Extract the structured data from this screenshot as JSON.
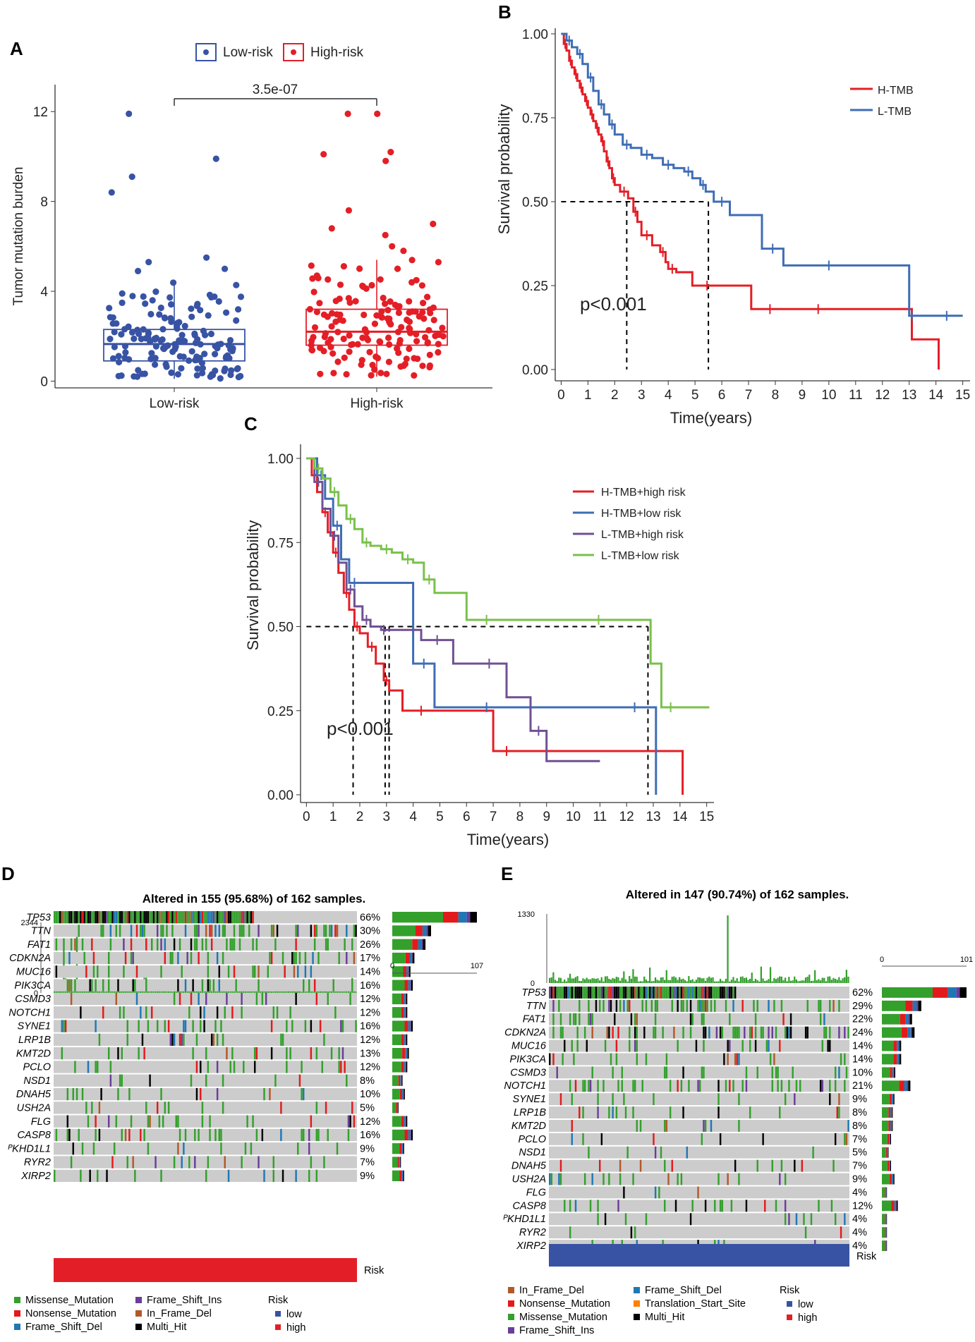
{
  "panels": {
    "A": "A",
    "B": "B",
    "C": "C",
    "D": "D",
    "E": "E"
  },
  "colors": {
    "low": "#3853a4",
    "high": "#e41e26",
    "green": "#6cbd45",
    "missense": "#33a02c",
    "nonsense": "#e31a1c",
    "fsdel": "#1f78b4",
    "fsins": "#6a3d9a",
    "infdel": "#b15928",
    "multi": "#000000",
    "tss": "#ff7f00",
    "grey": "#cccccc"
  },
  "chart_data": [
    {
      "id": "A",
      "type": "scatter",
      "title": "",
      "xlabel": "",
      "ylabel": "Tumor mutation burden",
      "categories": [
        "Low-risk",
        "High-risk"
      ],
      "legend": [
        "Low-risk",
        "High-risk"
      ],
      "ylim": [
        -0.3,
        13.2
      ],
      "yticks": [
        "0",
        "4",
        "8",
        "12"
      ],
      "p_value": "3.5e-07",
      "boxes": [
        {
          "group": "Low-risk",
          "q1": 0.9,
          "median": 1.65,
          "q3": 2.3,
          "whisker_low": 0.1,
          "whisker_high": 4.4
        },
        {
          "group": "High-risk",
          "q1": 1.6,
          "median": 2.2,
          "q3": 3.2,
          "whisker_low": 0.2,
          "whisker_high": 5.4
        }
      ],
      "outliers": {
        "Low-risk": [
          11.9,
          9.9,
          9.1,
          8.4,
          5.5,
          5.3,
          5.0,
          4.9
        ],
        "High-risk": [
          11.9,
          11.9,
          10.2,
          10.1,
          9.8,
          7.6,
          7.0,
          6.8,
          6.5,
          6.0,
          5.8
        ]
      }
    },
    {
      "id": "B",
      "type": "line",
      "xlabel": "Time(years)",
      "ylabel": "Survival probability",
      "xlim": [
        -0.3,
        15.3
      ],
      "ylim": [
        0,
        1
      ],
      "xticks": [
        "0",
        "1",
        "2",
        "3",
        "4",
        "5",
        "6",
        "7",
        "8",
        "9",
        "10",
        "11",
        "12",
        "13",
        "14",
        "15"
      ],
      "yticks": [
        "0.00",
        "0.25",
        "0.50",
        "0.75",
        "1.00"
      ],
      "p_text": "p<0.001",
      "median_survival": [
        2.45,
        5.5
      ],
      "series": [
        {
          "name": "H-TMB",
          "color": "#e41e26",
          "x": [
            0,
            0.1,
            0.2,
            0.3,
            0.4,
            0.5,
            0.6,
            0.7,
            0.8,
            0.9,
            1.0,
            1.1,
            1.2,
            1.3,
            1.4,
            1.5,
            1.6,
            1.7,
            1.8,
            1.9,
            2.0,
            2.2,
            2.5,
            2.7,
            2.85,
            3.0,
            3.4,
            3.7,
            3.9,
            4.0,
            4.3,
            4.9,
            6.0,
            7.1,
            8.5,
            9.2,
            10.0,
            12.9,
            13.1,
            13.5,
            14.1
          ],
          "y": [
            1,
            0.97,
            0.95,
            0.92,
            0.9,
            0.88,
            0.86,
            0.84,
            0.82,
            0.8,
            0.78,
            0.76,
            0.74,
            0.72,
            0.7,
            0.68,
            0.65,
            0.62,
            0.6,
            0.57,
            0.55,
            0.53,
            0.51,
            0.47,
            0.44,
            0.4,
            0.37,
            0.35,
            0.32,
            0.3,
            0.29,
            0.25,
            0.25,
            0.18,
            0.18,
            0.18,
            0.18,
            0.18,
            0.09,
            0.09,
            0
          ]
        },
        {
          "name": "L-TMB",
          "color": "#3e6db5",
          "x": [
            0,
            0.2,
            0.4,
            0.6,
            0.8,
            1.0,
            1.2,
            1.4,
            1.6,
            1.8,
            2.0,
            2.3,
            2.6,
            3.0,
            3.4,
            3.8,
            4.2,
            4.6,
            4.9,
            5.2,
            5.4,
            5.7,
            6.3,
            7.5,
            8.3,
            9.0,
            11.0,
            13.0,
            13.2,
            13.8,
            15.0
          ],
          "y": [
            1,
            0.98,
            0.96,
            0.94,
            0.91,
            0.87,
            0.83,
            0.79,
            0.76,
            0.73,
            0.7,
            0.67,
            0.66,
            0.64,
            0.63,
            0.61,
            0.6,
            0.59,
            0.57,
            0.55,
            0.53,
            0.5,
            0.46,
            0.36,
            0.31,
            0.31,
            0.31,
            0.16,
            0.16,
            0.16,
            0.16
          ]
        }
      ]
    },
    {
      "id": "C",
      "type": "line",
      "xlabel": "Time(years)",
      "ylabel": "Survival probability",
      "xlim": [
        -0.3,
        15.3
      ],
      "ylim": [
        0,
        1
      ],
      "xticks": [
        "0",
        "1",
        "2",
        "3",
        "4",
        "5",
        "6",
        "7",
        "8",
        "9",
        "10",
        "11",
        "12",
        "13",
        "14",
        "15"
      ],
      "yticks": [
        "0.00",
        "0.25",
        "0.50",
        "0.75",
        "1.00"
      ],
      "p_text": "p<0.001",
      "median_survival": [
        1.75,
        2.95,
        3.1,
        12.8
      ],
      "series": [
        {
          "name": "H-TMB+high risk",
          "color": "#e41e26",
          "x": [
            0,
            0.2,
            0.4,
            0.6,
            0.8,
            1.0,
            1.2,
            1.4,
            1.6,
            1.8,
            2.0,
            2.3,
            2.6,
            2.9,
            3.1,
            3.6,
            5.0,
            7.0,
            8.0,
            13.0,
            14.1
          ],
          "y": [
            1,
            0.95,
            0.9,
            0.84,
            0.78,
            0.72,
            0.66,
            0.6,
            0.55,
            0.5,
            0.48,
            0.44,
            0.39,
            0.34,
            0.31,
            0.25,
            0.25,
            0.13,
            0.13,
            0.13,
            0
          ]
        },
        {
          "name": "H-TMB+low risk",
          "color": "#3e6db5",
          "x": [
            0,
            0.4,
            0.7,
            1.0,
            1.3,
            1.6,
            2.0,
            4.0,
            4.8,
            5.5,
            8.0,
            11.6,
            13.0,
            13.1
          ],
          "y": [
            1,
            0.95,
            0.88,
            0.8,
            0.7,
            0.63,
            0.63,
            0.39,
            0.26,
            0.26,
            0.26,
            0.26,
            0.26,
            0
          ]
        },
        {
          "name": "L-TMB+high risk",
          "color": "#6f5094",
          "x": [
            0,
            0.3,
            0.6,
            0.9,
            1.2,
            1.5,
            1.8,
            2.1,
            2.4,
            2.8,
            3.0,
            4.3,
            5.5,
            6.2,
            7.5,
            8.4,
            9.0,
            11.0
          ],
          "y": [
            1,
            0.93,
            0.85,
            0.77,
            0.69,
            0.61,
            0.56,
            0.52,
            0.5,
            0.49,
            0.49,
            0.46,
            0.39,
            0.39,
            0.29,
            0.19,
            0.1,
            0.1
          ]
        },
        {
          "name": "L-TMB+low risk",
          "color": "#79c14a",
          "x": [
            0,
            0.3,
            0.6,
            0.9,
            1.2,
            1.5,
            1.8,
            2.1,
            2.4,
            2.8,
            3.2,
            3.6,
            4.0,
            4.4,
            4.8,
            6.0,
            7.5,
            9.0,
            12.9,
            13.3,
            14.0,
            15.1
          ],
          "y": [
            1,
            0.97,
            0.94,
            0.9,
            0.86,
            0.82,
            0.79,
            0.75,
            0.74,
            0.73,
            0.72,
            0.7,
            0.69,
            0.64,
            0.6,
            0.52,
            0.52,
            0.52,
            0.39,
            0.26,
            0.26,
            0.26
          ]
        }
      ]
    },
    {
      "id": "D",
      "type": "heatmap",
      "title": "Altered in 155 (95.68%) of 162 samples.",
      "tmb_max": "2344",
      "tmb_min": "0",
      "side_min": "0",
      "side_max": "107",
      "track_label": "Risk",
      "track_color": "#e41e26",
      "genes": [
        "TP53",
        "TTN",
        "FAT1",
        "CDKN2A",
        "MUC16",
        "PIK3CA",
        "CSMD3",
        "NOTCH1",
        "SYNE1",
        "LRP1B",
        "KMT2D",
        "PCLO",
        "NSD1",
        "DNAH5",
        "USH2A",
        "FLG",
        "CASP8",
        "PKHD1L1",
        "RYR2",
        "XIRP2"
      ],
      "genes_display": [
        "TP53",
        "TTN",
        "FAT1",
        "CDKN2A",
        "MUC16",
        "PIK3CA",
        "CSMD3",
        "NOTCH1",
        "SYNE1",
        "LRP1B",
        "KMT2D",
        "PCLO",
        "NSD1",
        "DNAH5",
        "USH2A",
        "FLG",
        "CASP8",
        "ᴾKHD1L1",
        "RYR2",
        "XIRP2"
      ],
      "percent": [
        "66%",
        "30%",
        "26%",
        "17%",
        "14%",
        "16%",
        "12%",
        "12%",
        "16%",
        "12%",
        "13%",
        "12%",
        "8%",
        "10%",
        "5%",
        "12%",
        "16%",
        "9%",
        "7%",
        "9%"
      ],
      "counts": [
        107,
        49,
        42,
        28,
        23,
        26,
        19,
        19,
        26,
        19,
        21,
        19,
        13,
        16,
        8,
        19,
        26,
        15,
        11,
        15
      ],
      "legend_types": [
        "Missense_Mutation",
        "Nonsense_Mutation",
        "Frame_Shift_Del",
        "Frame_Shift_Ins",
        "In_Frame_Del",
        "Multi_Hit"
      ],
      "legend_risk_title": "Risk",
      "legend_risk": [
        "low",
        "high"
      ]
    },
    {
      "id": "E",
      "type": "heatmap",
      "title": "Altered in 147 (90.74%) of 162 samples.",
      "tmb_max": "1330",
      "tmb_min": "0",
      "side_min": "0",
      "side_max": "101",
      "track_label": "Risk",
      "track_color": "#3853a4",
      "genes": [
        "TP53",
        "TTN",
        "FAT1",
        "CDKN2A",
        "MUC16",
        "PIK3CA",
        "CSMD3",
        "NOTCH1",
        "SYNE1",
        "LRP1B",
        "KMT2D",
        "PCLO",
        "NSD1",
        "DNAH5",
        "USH2A",
        "FLG",
        "CASP8",
        "PKHD1L1",
        "RYR2",
        "XIRP2"
      ],
      "genes_display": [
        "TP53",
        "TTN",
        "FAT1",
        "CDKN2A",
        "MUC16",
        "PIK3CA",
        "CSMD3",
        "NOTCH1",
        "SYNE1",
        "LRP1B",
        "KMT2D",
        "PCLO",
        "NSD1",
        "DNAH5",
        "USH2A",
        "FLG",
        "CASP8",
        "ᴾKHD1L1",
        "RYR2",
        "XIRP2"
      ],
      "percent": [
        "62%",
        "29%",
        "22%",
        "24%",
        "14%",
        "14%",
        "10%",
        "21%",
        "9%",
        "8%",
        "8%",
        "7%",
        "5%",
        "7%",
        "9%",
        "4%",
        "12%",
        "4%",
        "4%",
        "4%"
      ],
      "counts": [
        101,
        47,
        36,
        39,
        23,
        23,
        16,
        34,
        15,
        13,
        13,
        11,
        8,
        11,
        15,
        6,
        19,
        6,
        6,
        6
      ],
      "legend_types": [
        "In_Frame_Del",
        "Nonsense_Mutation",
        "Missense_Mutation",
        "Frame_Shift_Ins",
        "Frame_Shift_Del",
        "Translation_Start_Site",
        "Multi_Hit"
      ],
      "legend_risk_title": "Risk",
      "legend_risk": [
        "low",
        "high"
      ]
    }
  ]
}
